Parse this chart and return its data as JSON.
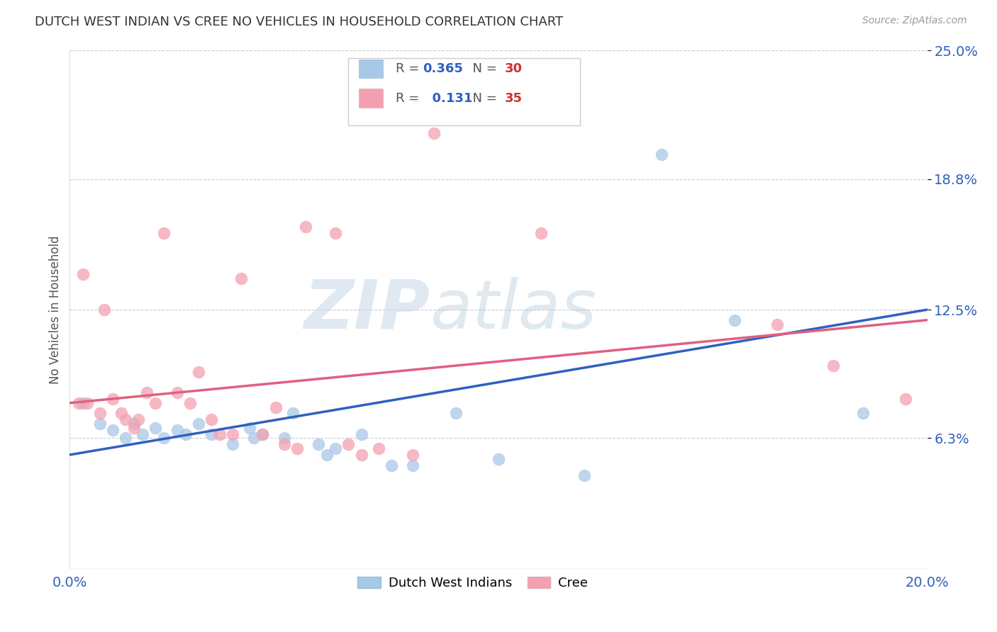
{
  "title": "DUTCH WEST INDIAN VS CREE NO VEHICLES IN HOUSEHOLD CORRELATION CHART",
  "source": "Source: ZipAtlas.com",
  "ylabel_label": "No Vehicles in Household",
  "xlim": [
    0.0,
    0.2
  ],
  "ylim": [
    0.0,
    0.25
  ],
  "ytick_positions": [
    0.063,
    0.125,
    0.188,
    0.25
  ],
  "ytick_labels": [
    "6.3%",
    "12.5%",
    "18.8%",
    "25.0%"
  ],
  "xtick_positions": [
    0.0,
    0.2
  ],
  "xtick_labels": [
    "0.0%",
    "20.0%"
  ],
  "legend_blue_r": "0.365",
  "legend_blue_n": "30",
  "legend_pink_r": "0.131",
  "legend_pink_n": "35",
  "blue_color": "#a8c8e8",
  "pink_color": "#f4a0b0",
  "blue_line_color": "#3060c0",
  "pink_line_color": "#e06080",
  "watermark_zip": "ZIP",
  "watermark_atlas": "atlas",
  "blue_scatter_x": [
    0.003,
    0.007,
    0.01,
    0.013,
    0.015,
    0.017,
    0.02,
    0.022,
    0.025,
    0.027,
    0.03,
    0.033,
    0.038,
    0.042,
    0.043,
    0.045,
    0.05,
    0.052,
    0.058,
    0.06,
    0.062,
    0.068,
    0.075,
    0.08,
    0.09,
    0.1,
    0.12,
    0.138,
    0.155,
    0.185
  ],
  "blue_scatter_y": [
    0.08,
    0.07,
    0.067,
    0.063,
    0.07,
    0.065,
    0.068,
    0.063,
    0.067,
    0.065,
    0.07,
    0.065,
    0.06,
    0.068,
    0.063,
    0.065,
    0.063,
    0.075,
    0.06,
    0.055,
    0.058,
    0.065,
    0.05,
    0.05,
    0.075,
    0.053,
    0.045,
    0.2,
    0.12,
    0.075
  ],
  "pink_scatter_x": [
    0.002,
    0.003,
    0.004,
    0.007,
    0.008,
    0.01,
    0.012,
    0.013,
    0.015,
    0.016,
    0.018,
    0.02,
    0.022,
    0.025,
    0.028,
    0.03,
    0.033,
    0.035,
    0.038,
    0.04,
    0.045,
    0.048,
    0.05,
    0.053,
    0.055,
    0.062,
    0.065,
    0.068,
    0.072,
    0.08,
    0.085,
    0.11,
    0.165,
    0.178,
    0.195
  ],
  "pink_scatter_y": [
    0.08,
    0.142,
    0.08,
    0.075,
    0.125,
    0.082,
    0.075,
    0.072,
    0.068,
    0.072,
    0.085,
    0.08,
    0.162,
    0.085,
    0.08,
    0.095,
    0.072,
    0.065,
    0.065,
    0.14,
    0.065,
    0.078,
    0.06,
    0.058,
    0.165,
    0.162,
    0.06,
    0.055,
    0.058,
    0.055,
    0.21,
    0.162,
    0.118,
    0.098,
    0.082
  ],
  "blue_line_x0": 0.0,
  "blue_line_x1": 0.2,
  "blue_line_y0": 0.055,
  "blue_line_y1": 0.125,
  "pink_line_x0": 0.0,
  "pink_line_x1": 0.2,
  "pink_line_y0": 0.08,
  "pink_line_y1": 0.12
}
